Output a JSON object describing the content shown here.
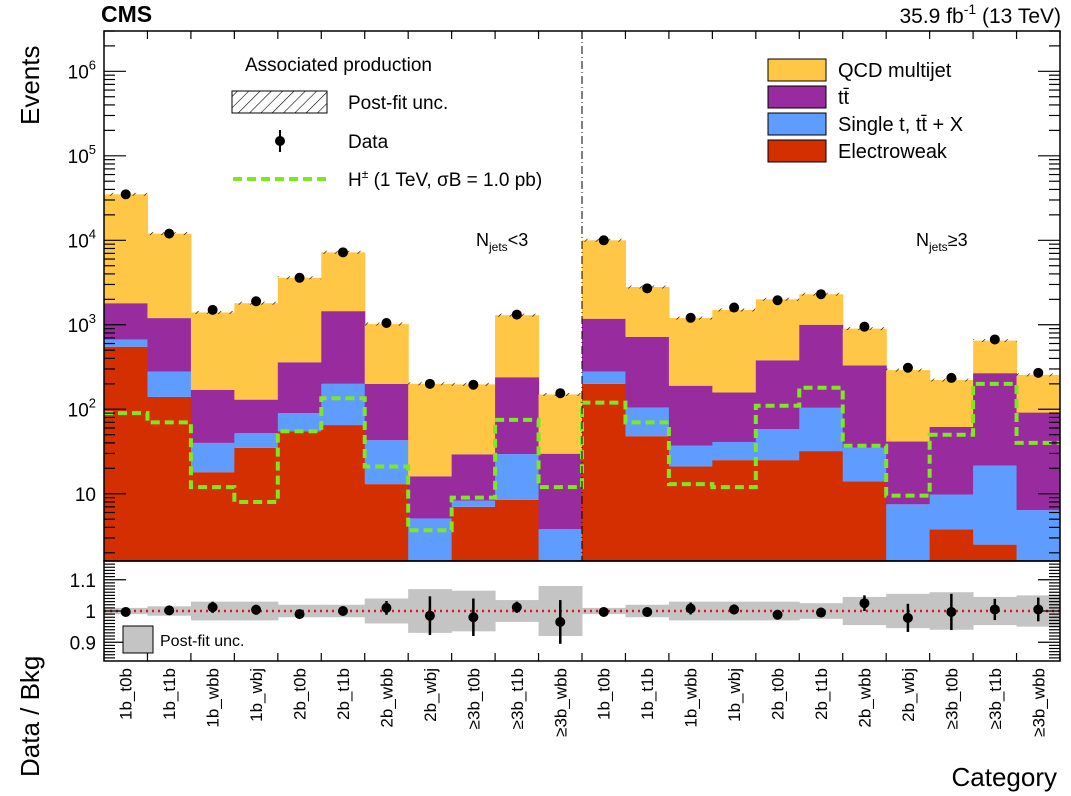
{
  "header": {
    "experiment": "CMS",
    "lumi": "35.9 fb",
    "lumi_sup": "-1",
    "energy": " (13 TeV)"
  },
  "colors": {
    "qcd": "#ffc745",
    "ttbar": "#982c9e",
    "single_t": "#5e9cff",
    "electroweak": "#d32f00",
    "signal": "#7ee81e",
    "ratio_band": "#c4c4c4",
    "ratio_line": "#e0141b"
  },
  "chart_data": {
    "type": "bar",
    "stacked": true,
    "xlabel": "Category",
    "ylabel": "Events",
    "ratio_ylabel": "Data / Bkg",
    "y_scale": "log",
    "ylim": [
      1.6,
      3000000
    ],
    "ratio_ylim": [
      0.84,
      1.16
    ],
    "y_ticks": [
      "10",
      "10^2",
      "10^3",
      "10^4",
      "10^5",
      "10^6"
    ],
    "ratio_ticks": [
      "0.9",
      "1",
      "1.1"
    ],
    "categories": [
      "1b_t0b",
      "1b_t1b",
      "1b_wbb",
      "1b_wbj",
      "2b_t0b",
      "2b_t1b",
      "2b_wbb",
      "2b_wbj",
      "≥3b_t0b",
      "≥3b_t1b",
      "≥3b_wbb",
      "1b_t0b",
      "1b_t1b",
      "1b_wbb",
      "1b_wbj",
      "2b_t0b",
      "2b_t1b",
      "2b_wbb",
      "2b_wbj",
      "≥3b_t0b",
      "≥3b_t1b",
      "≥3b_wbb"
    ],
    "regions": [
      {
        "label": "N",
        "sub": "jets",
        "op": "<3",
        "categories": [
          0,
          10
        ]
      },
      {
        "label": "N",
        "sub": "jets",
        "op": "≥3",
        "categories": [
          11,
          21
        ]
      }
    ],
    "series": [
      {
        "name": "Electroweak",
        "values": [
          550,
          140,
          18,
          35,
          55,
          65,
          13,
          1.6,
          7,
          8.5,
          1.6,
          200,
          48,
          21,
          25,
          25,
          32,
          14,
          1.5,
          3.8,
          2.5,
          1.6
        ]
      },
      {
        "name": "Single t, tt̄ + X",
        "values": [
          120,
          140,
          22,
          17,
          35,
          135,
          30,
          3.5,
          1.3,
          21,
          2.2,
          80,
          57,
          16,
          16,
          33,
          72,
          21,
          6,
          6,
          19,
          4.8
        ]
      },
      {
        "name": "tt̄",
        "values": [
          1130,
          920,
          130,
          78,
          270,
          1250,
          157,
          11,
          21,
          210,
          26,
          900,
          615,
          153,
          117,
          322,
          896,
          295,
          34,
          52,
          246,
          85
        ]
      },
      {
        "name": "QCD multijet",
        "values": [
          33200,
          10800,
          1230,
          1670,
          3240,
          5750,
          820,
          184,
          168,
          1060,
          120,
          8820,
          2080,
          1010,
          1340,
          1620,
          1300,
          570,
          249,
          160,
          383,
          164
        ]
      }
    ],
    "data": {
      "name": "Data",
      "values": [
        35000,
        12000,
        1500,
        1900,
        3600,
        7200,
        1050,
        200,
        195,
        1320,
        155,
        10000,
        2700,
        1210,
        1600,
        1950,
        2300,
        950,
        310,
        235,
        670,
        270
      ]
    },
    "signal": {
      "name": "H",
      "sup": "±",
      "detail": " (1 TeV, σB = 1.0 pb)",
      "values": [
        90,
        70,
        12,
        8,
        55,
        135,
        21,
        3.7,
        9,
        75,
        12,
        120,
        70,
        13,
        12,
        110,
        180,
        37,
        9.5,
        50,
        200,
        40
      ]
    },
    "ratio": {
      "values": [
        0.997,
        1.002,
        1.012,
        1.004,
        0.99,
        1.0,
        1.01,
        0.985,
        0.98,
        1.012,
        0.965,
        0.997,
        0.997,
        1.008,
        1.005,
        0.988,
        0.995,
        1.025,
        0.978,
        0.997,
        1.005,
        1.005
      ],
      "stat_err": [
        0.004,
        0.008,
        0.018,
        0.016,
        0.01,
        0.009,
        0.022,
        0.062,
        0.06,
        0.018,
        0.07,
        0.006,
        0.014,
        0.019,
        0.016,
        0.015,
        0.015,
        0.025,
        0.045,
        0.058,
        0.034,
        0.038
      ],
      "band": [
        0.01,
        0.015,
        0.03,
        0.03,
        0.02,
        0.02,
        0.04,
        0.07,
        0.065,
        0.035,
        0.08,
        0.01,
        0.02,
        0.03,
        0.03,
        0.03,
        0.025,
        0.045,
        0.055,
        0.06,
        0.045,
        0.05
      ]
    },
    "legend": {
      "left_title": "Associated production",
      "postfit_unc": "Post-fit unc.",
      "data": "Data",
      "ratio_band": "Post-fit unc."
    }
  }
}
